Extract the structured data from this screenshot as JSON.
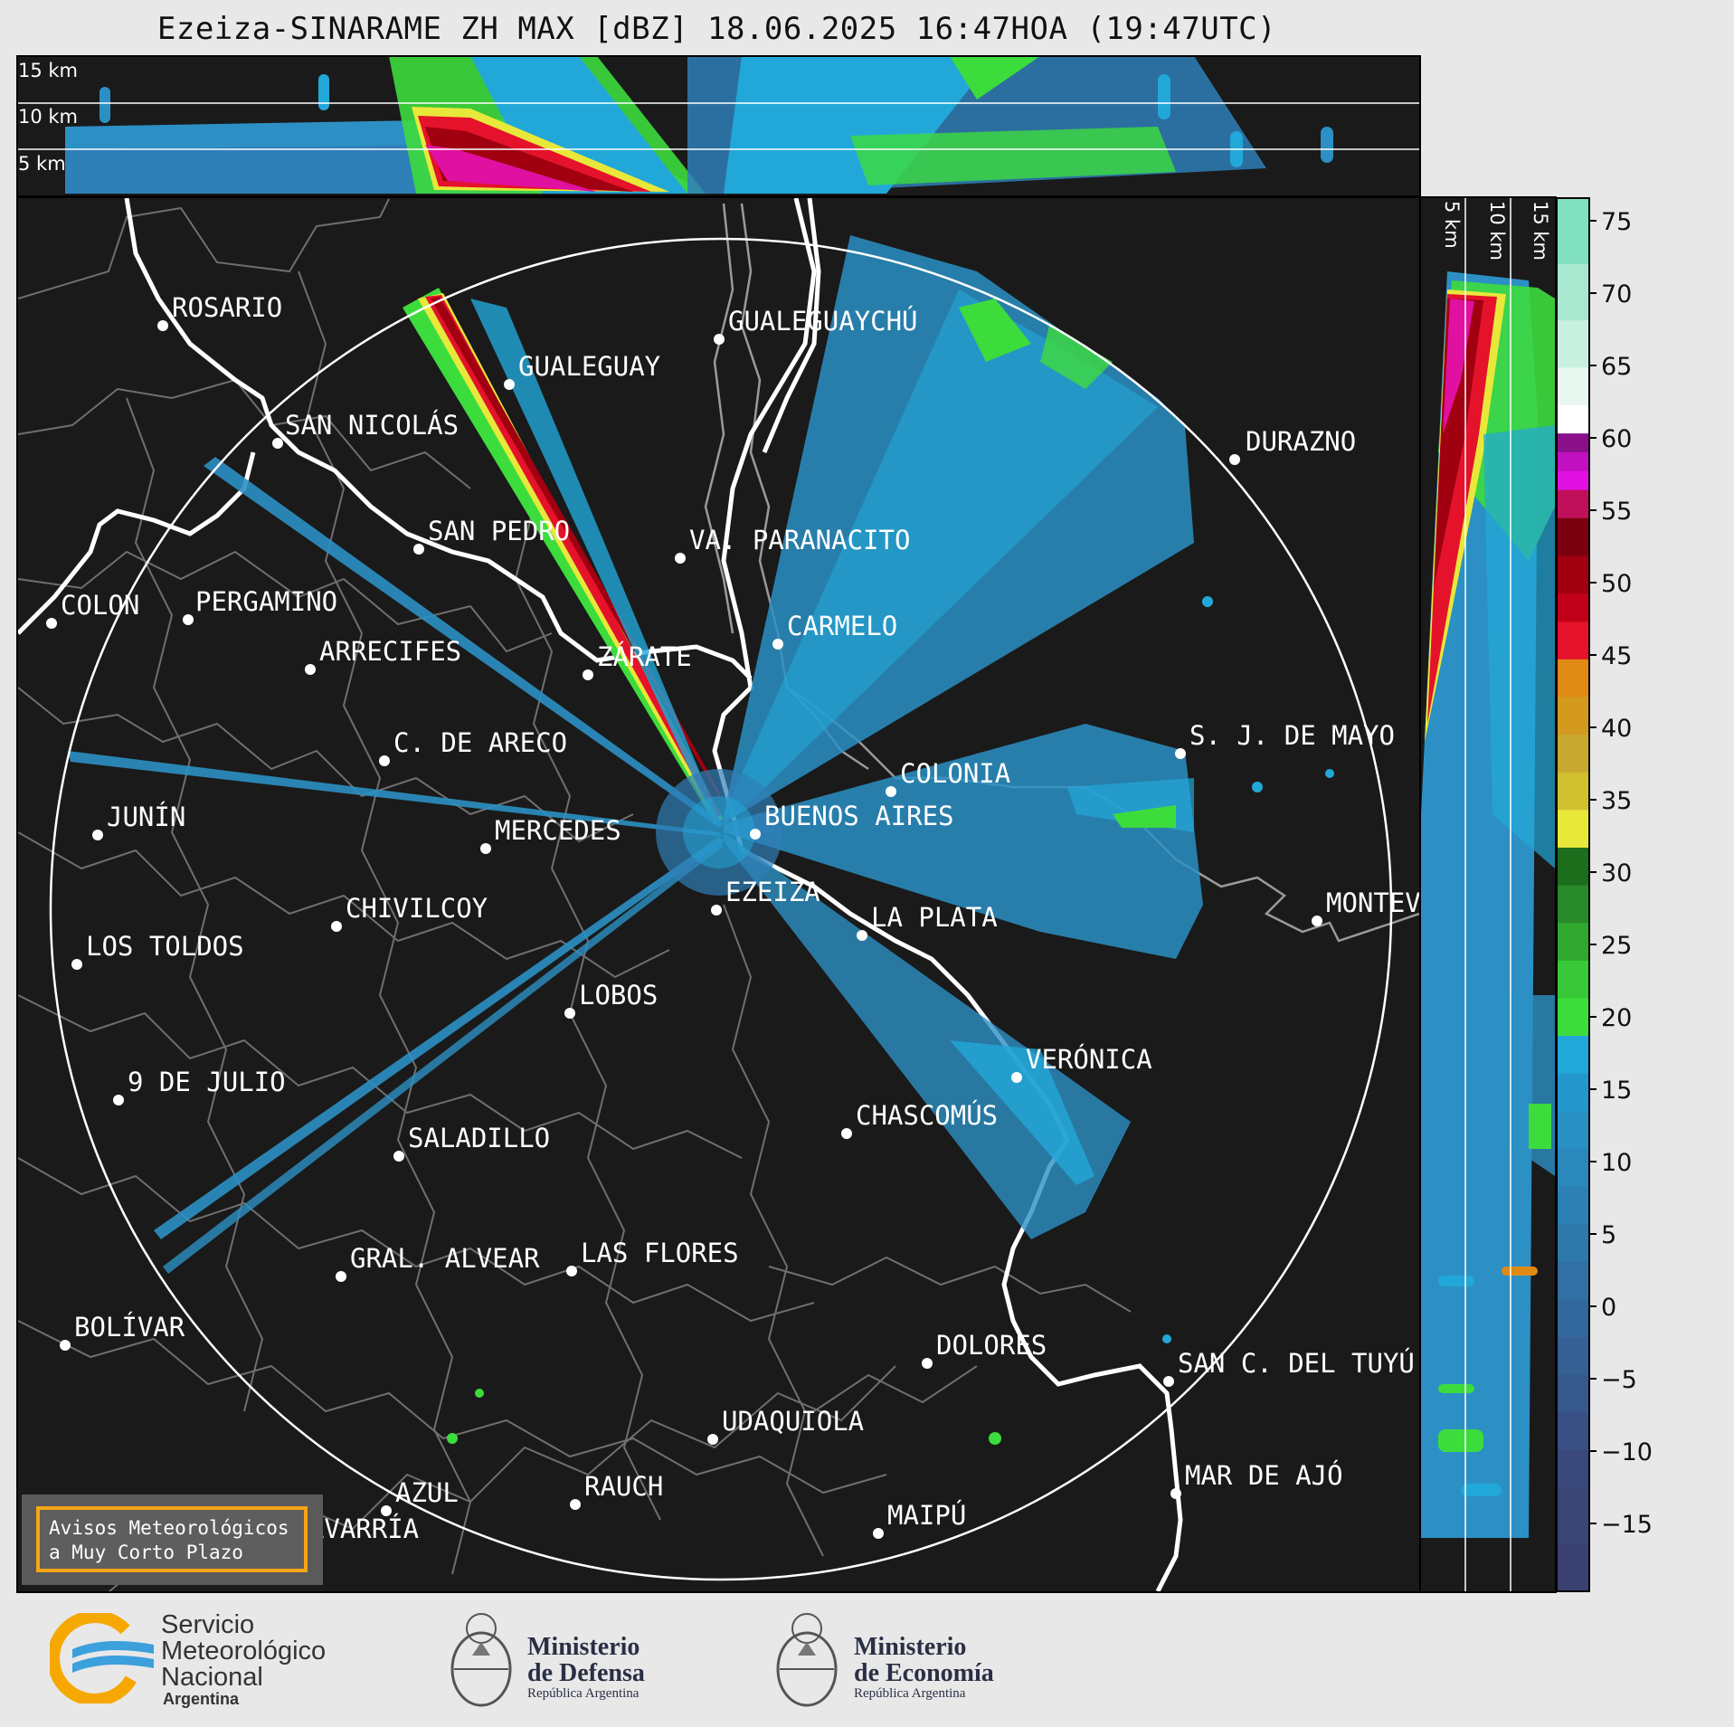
{
  "header": {
    "title": "Ezeiza-SINARAME ZH MAX [dBZ] 18.06.2025 16:47HOA (19:47UTC)"
  },
  "top_panel": {
    "height_labels": [
      "15 km",
      "10 km",
      "5 km"
    ]
  },
  "side_panel": {
    "height_labels": [
      "5 km",
      "10 km",
      "15 km"
    ]
  },
  "colorbar": {
    "unit": "dBZ",
    "ticks": [
      "75",
      "70",
      "65",
      "60",
      "55",
      "50",
      "45",
      "40",
      "35",
      "30",
      "25",
      "20",
      "15",
      "10",
      "5",
      "0",
      "−5",
      "−10",
      "−15"
    ],
    "colors": {
      "low": "#3a4574",
      "blue": "#2f7fb8",
      "cyan": "#22a8d8",
      "green": "#3ddc3d",
      "dark-green": "#1c6e1c",
      "yellow": "#e8e83a",
      "orange": "#e08a16",
      "red": "#e4122b",
      "dark-red": "#a00010",
      "magenta": "#e010e0",
      "purple": "#8a108a",
      "white": "#ffffff",
      "aqua": "#80e0c0"
    }
  },
  "map": {
    "cities": [
      {
        "name": "ROSARIO"
      },
      {
        "name": "GUALEGUAYCHÚ"
      },
      {
        "name": "GUALEGUAY"
      },
      {
        "name": "SAN NICOLÁS"
      },
      {
        "name": "DURAZNO"
      },
      {
        "name": "SAN PEDRO"
      },
      {
        "name": "VA. PARANACITO"
      },
      {
        "name": "COLON"
      },
      {
        "name": "PERGAMINO"
      },
      {
        "name": "CARMELO"
      },
      {
        "name": "ARRECIFES"
      },
      {
        "name": "ZÁRATE"
      },
      {
        "name": "S. J. DE MAYO"
      },
      {
        "name": "C. DE ARECO"
      },
      {
        "name": "COLONIA"
      },
      {
        "name": "JUNÍN"
      },
      {
        "name": "BUENOS AIRES"
      },
      {
        "name": "MERCEDES"
      },
      {
        "name": "EZEIZA"
      },
      {
        "name": "MONTEV"
      },
      {
        "name": "CHIVILCOY"
      },
      {
        "name": "LA PLATA"
      },
      {
        "name": "LOS TOLDOS"
      },
      {
        "name": "LOBOS"
      },
      {
        "name": "VERÓNICA"
      },
      {
        "name": "9 DE JULIO"
      },
      {
        "name": "CHASCOMÚS"
      },
      {
        "name": "SALADILLO"
      },
      {
        "name": "GRAL. ALVEAR"
      },
      {
        "name": "LAS FLORES"
      },
      {
        "name": "BOLÍVAR"
      },
      {
        "name": "DOLORES"
      },
      {
        "name": "SAN C. DEL TUYÚ"
      },
      {
        "name": "UDAQUIOLA"
      },
      {
        "name": "MAR DE AJÓ"
      },
      {
        "name": "AZUL"
      },
      {
        "name": "RAUCH"
      },
      {
        "name": "OLAVARRÍA"
      },
      {
        "name": "MAIPÚ"
      }
    ],
    "range_ring": "outer range ring"
  },
  "warning_box": {
    "line1": "Avisos Meteorológicos",
    "line2": "a Muy Corto Plazo"
  },
  "footer": {
    "smn": {
      "line1": "Servicio",
      "line2": "Meteorológico",
      "line3": "Nacional",
      "country": "Argentina"
    },
    "defensa": {
      "line1": "Ministerio",
      "line2": "de Defensa",
      "sub": "República Argentina"
    },
    "economia": {
      "line1": "Ministerio",
      "line2": "de Economía",
      "sub": "República Argentina"
    }
  }
}
